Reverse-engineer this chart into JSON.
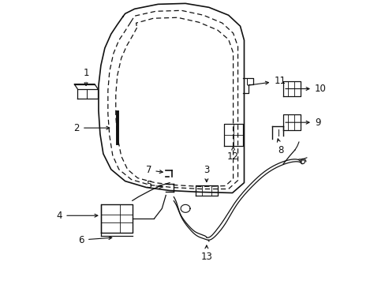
{
  "bg_color": "#ffffff",
  "line_color": "#111111",
  "fig_width": 4.89,
  "fig_height": 3.6,
  "dpi": 100
}
